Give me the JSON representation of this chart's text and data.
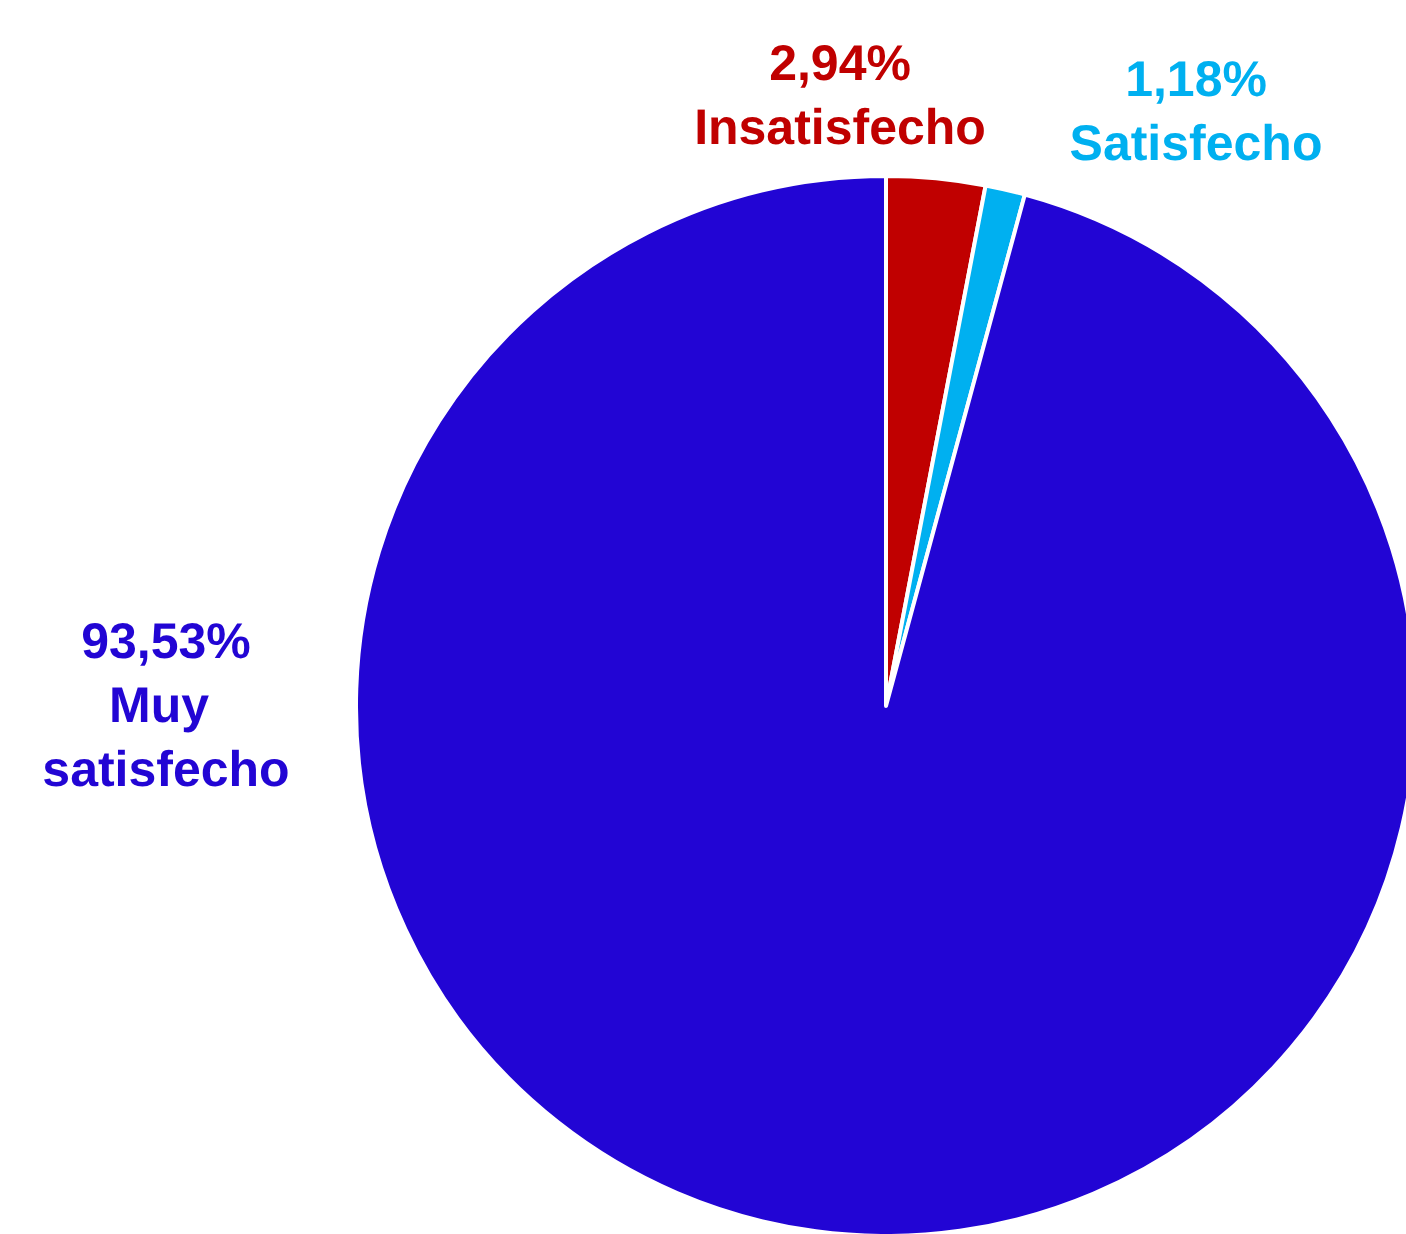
{
  "chart_data": {
    "type": "pie",
    "categories": [
      "Insatisfecho",
      "Satisfecho",
      "Muy satisfecho"
    ],
    "values": [
      2.94,
      1.18,
      93.53
    ],
    "value_labels": [
      "2,94%",
      "1,18%",
      "93,53%"
    ],
    "colors": [
      "#c00000",
      "#00b0f0",
      "#2205d4"
    ]
  }
}
